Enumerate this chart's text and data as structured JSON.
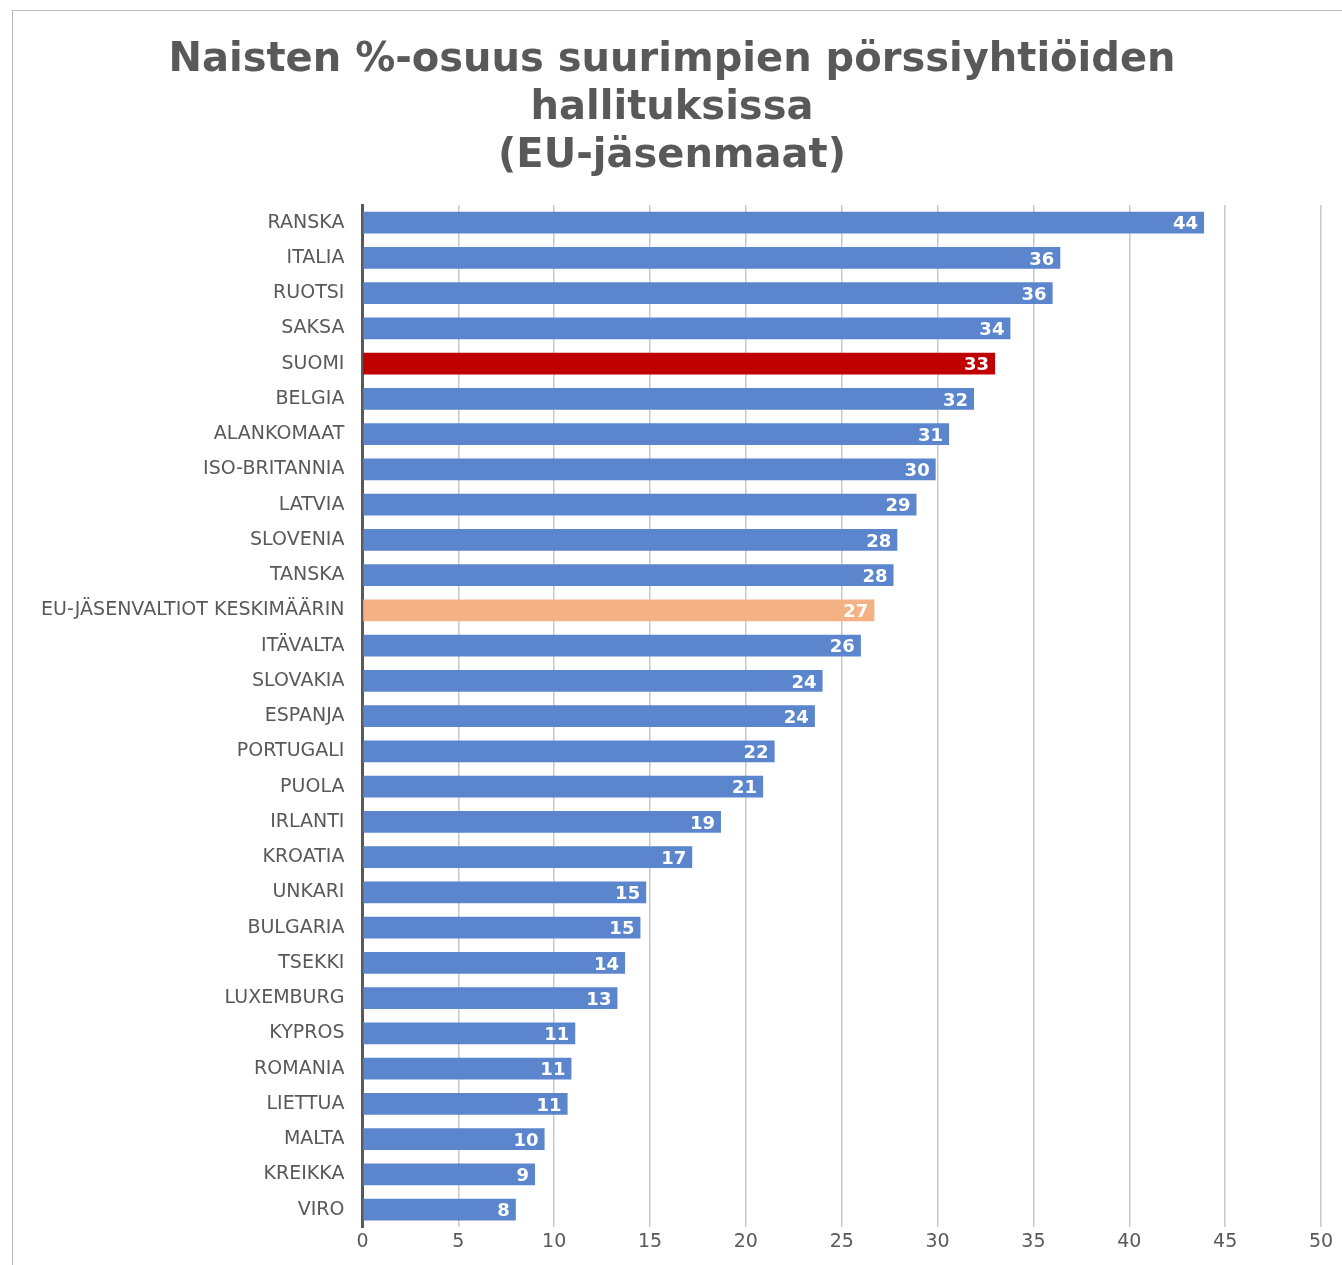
{
  "chart_data": {
    "type": "bar",
    "orientation": "horizontal",
    "title": "Naisten %-osuus suurimpien pörssiyhtiöiden hallituksissa\n(EU-jäsenmaat)",
    "categories": [
      "RANSKA",
      "ITALIA",
      "RUOTSI",
      "SAKSA",
      "SUOMI",
      "BELGIA",
      "ALANKOMAAT",
      "ISO-BRITANNIA",
      "LATVIA",
      "SLOVENIA",
      "TANSKA",
      "EU-JÄSENVALTIOT KESKIMÄÄRIN",
      "ITÄVALTA",
      "SLOVAKIA",
      "ESPANJA",
      "PORTUGALI",
      "PUOLA",
      "IRLANTI",
      "KROATIA",
      "UNKARI",
      "BULGARIA",
      "TSEKKI",
      "LUXEMBURG",
      "KYPROS",
      "ROMANIA",
      "LIETTUA",
      "MALTA",
      "KREIKKA",
      "VIRO"
    ],
    "values": [
      43.9,
      36.4,
      36.0,
      33.8,
      33.0,
      31.9,
      30.6,
      29.9,
      28.9,
      27.9,
      27.7,
      26.7,
      26.0,
      24.0,
      23.6,
      21.5,
      20.9,
      18.7,
      17.2,
      14.8,
      14.5,
      13.7,
      13.3,
      11.1,
      10.9,
      10.7,
      9.5,
      9.0,
      8.0
    ],
    "value_labels": [
      "44",
      "36",
      "36",
      "34",
      "33",
      "32",
      "31",
      "30",
      "29",
      "28",
      "28",
      "27",
      "26",
      "24",
      "24",
      "22",
      "21",
      "19",
      "17",
      "15",
      "15",
      "14",
      "13",
      "11",
      "11",
      "11",
      "10",
      "9",
      "8"
    ],
    "colors": [
      "#5b85cd",
      "#5b85cd",
      "#5b85cd",
      "#5b85cd",
      "#c00000",
      "#5b85cd",
      "#5b85cd",
      "#5b85cd",
      "#5b85cd",
      "#5b85cd",
      "#5b85cd",
      "#f4b183",
      "#5b85cd",
      "#5b85cd",
      "#5b85cd",
      "#5b85cd",
      "#5b85cd",
      "#5b85cd",
      "#5b85cd",
      "#5b85cd",
      "#5b85cd",
      "#5b85cd",
      "#5b85cd",
      "#5b85cd",
      "#5b85cd",
      "#5b85cd",
      "#5b85cd",
      "#5b85cd",
      "#5b85cd"
    ],
    "xlim": [
      0,
      50
    ],
    "xticks": [
      0,
      5,
      10,
      15,
      20,
      25,
      30,
      35,
      40,
      45,
      50
    ],
    "grid": "x",
    "legend": false
  }
}
